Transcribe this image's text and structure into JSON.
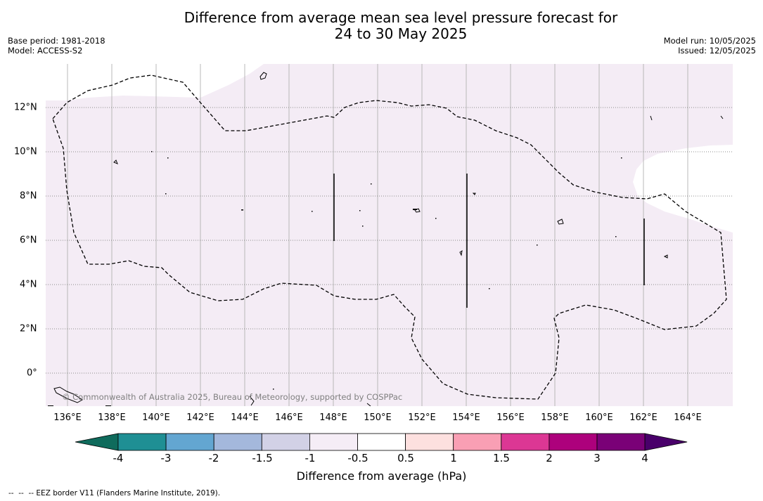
{
  "title_line1": "Difference from average mean sea level pressure forecast for",
  "title_line2": "24 to 30 May 2025",
  "base_period": "Base period: 1981-2018",
  "model": "Model: ACCESS-S2",
  "model_run": "Model run: 10/05/2025",
  "issued": "Issued: 12/05/2025",
  "copyright": "© Commonwealth of Australia 2025, Bureau of Meteorology, supported by COSPPac",
  "lon_labels": [
    "136°E",
    "138°E",
    "140°E",
    "142°E",
    "144°E",
    "146°E",
    "148°E",
    "150°E",
    "152°E",
    "154°E",
    "156°E",
    "158°E",
    "160°E",
    "162°E",
    "164°E"
  ],
  "lat_labels": [
    "12°N",
    "10°N",
    "8°N",
    "6°N",
    "4°N",
    "2°N",
    "0°"
  ],
  "colorbar": {
    "title": "Difference from average (hPa)",
    "ticks": [
      "-4",
      "-3",
      "-2",
      "-1.5",
      "-1",
      "-0.5",
      "0.5",
      "1",
      "1.5",
      "2",
      "3",
      "4"
    ],
    "colors": [
      "#1f8f94",
      "#63a6d1",
      "#a4b8dc",
      "#d2d1e6",
      "#f5edf6",
      "#ffffff",
      "#fde0df",
      "#f99fb4",
      "#dc3794",
      "#ad017c",
      "#7a0177"
    ],
    "under_color": "#0f6b5c",
    "over_color": "#49006a"
  },
  "map": {
    "fill_color": "#f4ecf5",
    "region_value": "-1 to -0.5 hPa"
  },
  "footnote": "--  --  -- EEZ border V11 (Flanders Marine Institute, 2019)."
}
